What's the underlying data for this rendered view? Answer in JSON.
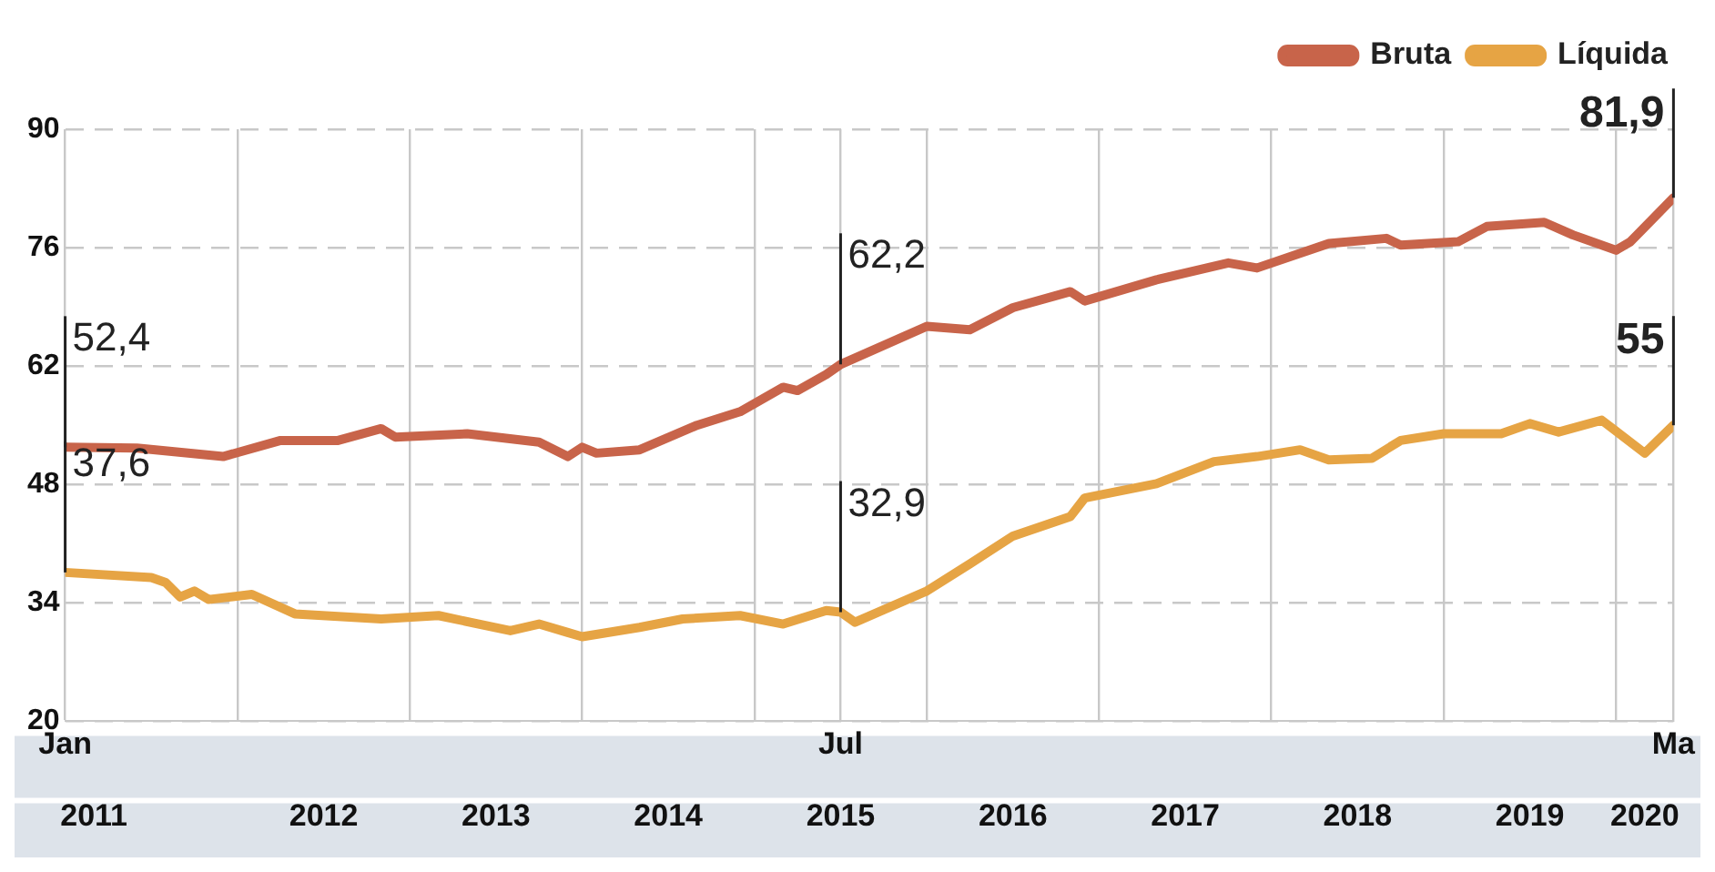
{
  "chart_data": {
    "type": "line",
    "xlim": [
      "2011-01",
      "2020-05"
    ],
    "xticks": [
      {
        "value": "2011-01",
        "label": "Jan"
      },
      {
        "value": "2012-01",
        "label": null
      },
      {
        "value": "2013-01",
        "label": null
      },
      {
        "value": "2014-01",
        "label": null
      },
      {
        "value": "2015-01",
        "label": null
      },
      {
        "value": "2015-07",
        "label": "Jul"
      },
      {
        "value": "2016-01",
        "label": null
      },
      {
        "value": "2017-01",
        "label": null
      },
      {
        "value": "2018-01",
        "label": null
      },
      {
        "value": "2019-01",
        "label": null
      },
      {
        "value": "2020-01",
        "label": null
      },
      {
        "value": "2020-05",
        "label": "Ma"
      }
    ],
    "x2lim": [
      "2011-01",
      "2020-05"
    ],
    "x2ticks": [
      {
        "value": "2011-03",
        "label": "2011"
      },
      {
        "value": "2012-07",
        "label": "2012"
      },
      {
        "value": "2013-07",
        "label": "2013"
      },
      {
        "value": "2014-07",
        "label": "2014"
      },
      {
        "value": "2015-07",
        "label": "2015"
      },
      {
        "value": "2016-07",
        "label": "2016"
      },
      {
        "value": "2017-07",
        "label": "2017"
      },
      {
        "value": "2018-07",
        "label": "2018"
      },
      {
        "value": "2019-07",
        "label": "2019"
      },
      {
        "value": "2020-03",
        "label": "2020"
      }
    ],
    "ylim": [
      20,
      90
    ],
    "yticks": [
      20,
      34,
      48,
      62,
      76,
      90
    ],
    "grid": true,
    "legend": "top right",
    "line_style": "solid",
    "marker": "none",
    "series": [
      {
        "name": "Bruta",
        "color": "#c8644a",
        "x": [
          "2011-01",
          "2011-06",
          "2011-12",
          "2012-04",
          "2012-08",
          "2012-11",
          "2012-12",
          "2013-05",
          "2013-10",
          "2013-12",
          "2014-01",
          "2014-02",
          "2014-05",
          "2014-09",
          "2014-12",
          "2015-03",
          "2015-04",
          "2015-06",
          "2015-07",
          "2016-01",
          "2016-04",
          "2016-07",
          "2016-11",
          "2016-12",
          "2017-05",
          "2017-10",
          "2017-12",
          "2018-05",
          "2018-09",
          "2018-10",
          "2019-02",
          "2019-04",
          "2019-08",
          "2019-10",
          "2020-01",
          "2020-02",
          "2020-05"
        ],
        "values": [
          52.4,
          52.3,
          51.3,
          53.2,
          53.2,
          54.6,
          53.6,
          54.0,
          53.0,
          51.3,
          52.4,
          51.7,
          52.1,
          55.0,
          56.6,
          59.5,
          59.1,
          61.0,
          62.2,
          66.7,
          66.3,
          68.9,
          70.8,
          69.7,
          72.2,
          74.2,
          73.6,
          76.5,
          77.1,
          76.3,
          76.7,
          78.5,
          79.0,
          77.5,
          75.7,
          76.7,
          81.9
        ],
        "value_labels": [
          "52,4",
          null,
          null,
          null,
          null,
          null,
          null,
          null,
          null,
          null,
          null,
          null,
          null,
          null,
          null,
          null,
          null,
          null,
          "62,2",
          null,
          null,
          null,
          null,
          null,
          null,
          null,
          null,
          null,
          null,
          null,
          null,
          null,
          null,
          null,
          null,
          null,
          "81,9"
        ]
      },
      {
        "name": "Líquida",
        "color": "#e6a444",
        "x": [
          "2011-01",
          "2011-07",
          "2011-08",
          "2011-09",
          "2011-10",
          "2011-11",
          "2012-02",
          "2012-05",
          "2012-11",
          "2013-03",
          "2013-08",
          "2013-10",
          "2013-12",
          "2014-01",
          "2014-05",
          "2014-08",
          "2014-12",
          "2015-03",
          "2015-06",
          "2015-07",
          "2015-08",
          "2016-01",
          "2016-04",
          "2016-07",
          "2016-11",
          "2016-12",
          "2017-05",
          "2017-09",
          "2017-12",
          "2018-03",
          "2018-05",
          "2018-08",
          "2018-10",
          "2019-01",
          "2019-05",
          "2019-07",
          "2019-09",
          "2019-12",
          "2020-03",
          "2020-05"
        ],
        "values": [
          37.6,
          37.0,
          36.4,
          34.7,
          35.4,
          34.4,
          35.0,
          32.7,
          32.1,
          32.5,
          30.7,
          31.5,
          30.5,
          30.0,
          31.1,
          32.1,
          32.5,
          31.5,
          33.1,
          32.9,
          31.7,
          35.4,
          38.6,
          41.9,
          44.2,
          46.4,
          48.1,
          50.7,
          51.3,
          52.1,
          50.9,
          51.1,
          53.2,
          54.0,
          54.0,
          55.2,
          54.2,
          55.6,
          51.7,
          55
        ],
        "value_labels": [
          "37,6",
          null,
          null,
          null,
          null,
          null,
          null,
          null,
          null,
          null,
          null,
          null,
          null,
          null,
          null,
          null,
          null,
          null,
          null,
          "32,9",
          null,
          null,
          null,
          null,
          null,
          null,
          null,
          null,
          null,
          null,
          null,
          null,
          null,
          null,
          null,
          null,
          null,
          null,
          null,
          "55"
        ]
      }
    ]
  }
}
